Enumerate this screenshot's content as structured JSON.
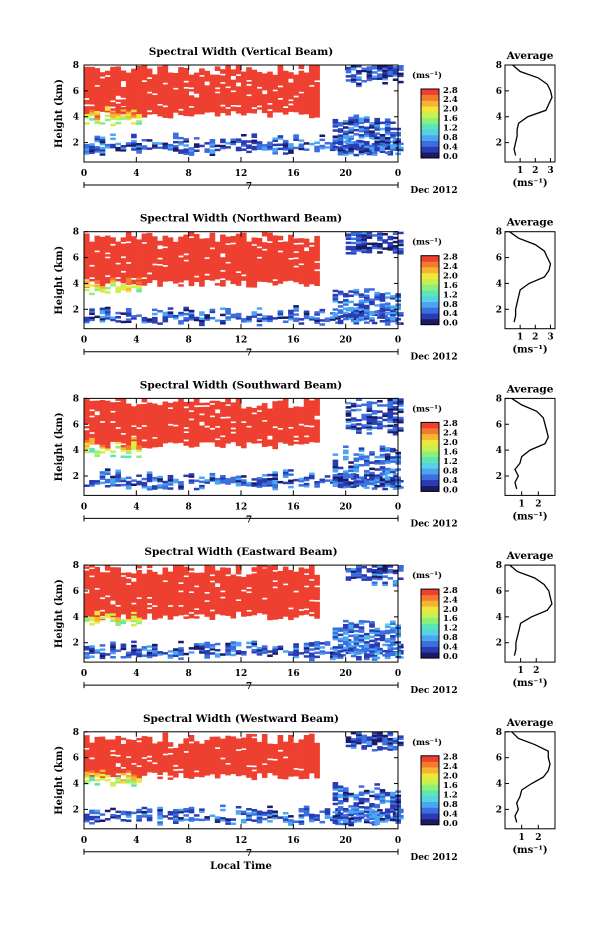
{
  "figure": {
    "xlabel": "Local Time",
    "date_label": "Dec 2012",
    "day_label": "7",
    "colorbar_unit": "(ms⁻¹)",
    "colorbar_ticks": [
      "0.0",
      "0.4",
      "0.8",
      "1.2",
      "1.6",
      "2.0",
      "2.4",
      "2.8"
    ],
    "colorbar_colors": [
      "#1a1a66",
      "#2a3cb4",
      "#3c6ede",
      "#4ba6f0",
      "#56d2e6",
      "#5ce6b4",
      "#8cf07a",
      "#c8f050",
      "#f0e63c",
      "#f6b432",
      "#f47a2c",
      "#ee4030"
    ],
    "profile_title": "Average",
    "profile_xlabel": "(ms⁻¹)"
  },
  "chart_data": [
    {
      "type": "heatmap",
      "title": "Spectral Width (Vertical Beam)",
      "ylabel": "Height (km)",
      "xlim": [
        0,
        24
      ],
      "ylim": [
        0.5,
        8
      ],
      "x_ticks": [
        "0",
        "4",
        "8",
        "12",
        "16",
        "20",
        "0"
      ],
      "y_ticks": [
        "2",
        "4",
        "6",
        "8"
      ],
      "colorbar_label": "(ms⁻¹)",
      "colorbar_range": [
        0.0,
        2.8
      ],
      "regions": [
        {
          "t": [
            0,
            18
          ],
          "h": [
            4.2,
            7.6
          ],
          "value": 2.8,
          "note": "upper red layer"
        },
        {
          "t": [
            0,
            4
          ],
          "h": [
            3.5,
            4.3
          ],
          "value": 1.6
        },
        {
          "t": [
            0,
            24
          ],
          "h": [
            1.3,
            2.2
          ],
          "value": 0.5
        },
        {
          "t": [
            19,
            24
          ],
          "h": [
            1.2,
            3.8
          ],
          "value": 0.5
        },
        {
          "t": [
            20,
            24
          ],
          "h": [
            6.6,
            8.0
          ],
          "value": 0.4
        }
      ],
      "profile": {
        "title": "Average",
        "xlabel": "(ms⁻¹)",
        "x_ticks": [
          "1",
          "2",
          "3"
        ],
        "xlim": [
          0,
          3.3
        ],
        "y_ticks": [
          "2",
          "4",
          "6",
          "8"
        ],
        "ylim": [
          0.5,
          8
        ],
        "heights": [
          1.0,
          1.5,
          2.0,
          2.5,
          3.0,
          3.5,
          4.0,
          4.5,
          5.0,
          5.5,
          6.0,
          6.5,
          7.0,
          7.5,
          8.0
        ],
        "values": [
          0.7,
          0.6,
          0.7,
          0.8,
          0.8,
          0.9,
          1.5,
          2.7,
          2.9,
          3.1,
          3.0,
          2.8,
          2.2,
          1.0,
          0.5
        ]
      }
    },
    {
      "type": "heatmap",
      "title": "Spectral Width (Northward Beam)",
      "ylabel": "Height (km)",
      "xlim": [
        0,
        24
      ],
      "ylim": [
        0.5,
        8
      ],
      "x_ticks": [
        "0",
        "4",
        "8",
        "12",
        "16",
        "20",
        "0"
      ],
      "y_ticks": [
        "2",
        "4",
        "6",
        "8"
      ],
      "colorbar_label": "(ms⁻¹)",
      "colorbar_range": [
        0.0,
        2.8
      ],
      "regions": [
        {
          "t": [
            0,
            18
          ],
          "h": [
            4.0,
            7.5
          ],
          "value": 2.8
        },
        {
          "t": [
            0,
            4
          ],
          "h": [
            3.4,
            4.1
          ],
          "value": 1.6
        },
        {
          "t": [
            0,
            24
          ],
          "h": [
            1.0,
            1.8
          ],
          "value": 0.5
        },
        {
          "t": [
            19,
            24
          ],
          "h": [
            1.0,
            3.5
          ],
          "value": 0.6
        },
        {
          "t": [
            20,
            24
          ],
          "h": [
            6.4,
            8.0
          ],
          "value": 0.4
        }
      ],
      "profile": {
        "title": "Average",
        "xlabel": "(ms⁻¹)",
        "x_ticks": [
          "1",
          "2",
          "3"
        ],
        "xlim": [
          0,
          3.3
        ],
        "y_ticks": [
          "2",
          "4",
          "6",
          "8"
        ],
        "ylim": [
          0.5,
          8
        ],
        "heights": [
          1.0,
          1.5,
          2.0,
          2.5,
          3.0,
          3.5,
          4.0,
          4.5,
          5.0,
          5.5,
          6.0,
          6.5,
          7.0,
          7.5,
          8.0
        ],
        "values": [
          0.6,
          0.7,
          0.7,
          0.8,
          0.9,
          1.0,
          1.6,
          2.6,
          2.9,
          3.0,
          2.8,
          2.6,
          2.0,
          0.9,
          0.3
        ]
      }
    },
    {
      "type": "heatmap",
      "title": "Spectral Width (Southward Beam)",
      "ylabel": "Height (km)",
      "xlim": [
        0,
        24
      ],
      "ylim": [
        0.5,
        8
      ],
      "x_ticks": [
        "0",
        "4",
        "8",
        "12",
        "16",
        "20",
        "0"
      ],
      "y_ticks": [
        "2",
        "4",
        "6",
        "8"
      ],
      "colorbar_label": "(ms⁻¹)",
      "colorbar_range": [
        0.0,
        2.8
      ],
      "regions": [
        {
          "t": [
            0,
            18
          ],
          "h": [
            4.4,
            7.6
          ],
          "value": 2.8
        },
        {
          "t": [
            0,
            4
          ],
          "h": [
            3.7,
            4.5
          ],
          "value": 1.6
        },
        {
          "t": [
            0,
            24
          ],
          "h": [
            1.2,
            2.0
          ],
          "value": 0.5
        },
        {
          "t": [
            19,
            24
          ],
          "h": [
            1.1,
            3.8
          ],
          "value": 0.5
        },
        {
          "t": [
            20,
            24
          ],
          "h": [
            5.4,
            8.0
          ],
          "value": 0.4
        }
      ],
      "profile": {
        "title": "Average",
        "xlabel": "(ms⁻¹)",
        "x_ticks": [
          "1",
          "2"
        ],
        "xlim": [
          0,
          3.0
        ],
        "y_ticks": [
          "2",
          "4",
          "6",
          "8"
        ],
        "ylim": [
          0.5,
          8
        ],
        "heights": [
          1.0,
          1.5,
          2.0,
          2.5,
          3.0,
          3.5,
          4.0,
          4.5,
          5.0,
          5.5,
          6.0,
          6.5,
          7.0,
          7.5,
          8.0
        ],
        "values": [
          0.7,
          0.6,
          0.8,
          0.6,
          0.9,
          1.0,
          1.5,
          2.4,
          2.6,
          2.5,
          2.4,
          2.3,
          1.9,
          1.0,
          0.4
        ]
      }
    },
    {
      "type": "heatmap",
      "title": "Spectral Width (Eastward Beam)",
      "ylabel": "Height (km)",
      "xlim": [
        0,
        24
      ],
      "ylim": [
        0.5,
        8
      ],
      "x_ticks": [
        "0",
        "4",
        "8",
        "12",
        "16",
        "20",
        "0"
      ],
      "y_ticks": [
        "2",
        "4",
        "6",
        "8"
      ],
      "colorbar_label": "(ms⁻¹)",
      "colorbar_range": [
        0.0,
        2.8
      ],
      "regions": [
        {
          "t": [
            0,
            18
          ],
          "h": [
            4.0,
            7.6
          ],
          "value": 2.8
        },
        {
          "t": [
            0,
            4
          ],
          "h": [
            3.4,
            4.1
          ],
          "value": 1.6
        },
        {
          "t": [
            0,
            24
          ],
          "h": [
            0.9,
            1.7
          ],
          "value": 0.5
        },
        {
          "t": [
            19,
            24
          ],
          "h": [
            0.9,
            3.4
          ],
          "value": 0.6
        },
        {
          "t": [
            20,
            24
          ],
          "h": [
            6.6,
            8.0
          ],
          "value": 0.4
        }
      ],
      "profile": {
        "title": "Average",
        "xlabel": "(ms⁻¹)",
        "x_ticks": [
          "1",
          "2"
        ],
        "xlim": [
          0,
          3.2
        ],
        "y_ticks": [
          "2",
          "4",
          "6",
          "8"
        ],
        "ylim": [
          0.5,
          8
        ],
        "heights": [
          1.0,
          1.5,
          2.0,
          2.5,
          3.0,
          3.5,
          4.0,
          4.5,
          5.0,
          5.5,
          6.0,
          6.5,
          7.0,
          7.5,
          8.0
        ],
        "values": [
          0.6,
          0.7,
          0.7,
          0.8,
          0.9,
          1.0,
          1.7,
          2.7,
          3.0,
          2.9,
          2.8,
          2.5,
          1.9,
          0.8,
          0.3
        ]
      }
    },
    {
      "type": "heatmap",
      "title": "Spectral Width (Westward Beam)",
      "ylabel": "Height (km)",
      "xlim": [
        0,
        24
      ],
      "ylim": [
        0.5,
        8
      ],
      "x_ticks": [
        "0",
        "4",
        "8",
        "12",
        "16",
        "20",
        "0"
      ],
      "y_ticks": [
        "2",
        "4",
        "6",
        "8"
      ],
      "colorbar_label": "(ms⁻¹)",
      "colorbar_range": [
        0.0,
        2.8
      ],
      "regions": [
        {
          "t": [
            0,
            18
          ],
          "h": [
            4.6,
            7.4
          ],
          "value": 2.8
        },
        {
          "t": [
            0,
            4
          ],
          "h": [
            4.0,
            4.7
          ],
          "value": 1.6
        },
        {
          "t": [
            0,
            24
          ],
          "h": [
            1.0,
            1.8
          ],
          "value": 0.5
        },
        {
          "t": [
            19,
            24
          ],
          "h": [
            0.9,
            3.6
          ],
          "value": 0.5
        },
        {
          "t": [
            20,
            24
          ],
          "h": [
            6.6,
            8.0
          ],
          "value": 0.4
        }
      ],
      "profile": {
        "title": "Average",
        "xlabel": "(ms⁻¹)",
        "x_ticks": [
          "1",
          "2"
        ],
        "xlim": [
          0,
          3.0
        ],
        "y_ticks": [
          "2",
          "4",
          "6",
          "8"
        ],
        "ylim": [
          0.5,
          8
        ],
        "heights": [
          1.0,
          1.5,
          2.0,
          2.5,
          3.0,
          3.5,
          4.0,
          4.5,
          5.0,
          5.5,
          6.0,
          6.5,
          7.0,
          7.5,
          8.0
        ],
        "values": [
          0.7,
          0.6,
          0.8,
          0.7,
          0.9,
          1.0,
          1.6,
          2.3,
          2.6,
          2.7,
          2.6,
          2.6,
          1.8,
          0.8,
          0.4
        ]
      }
    }
  ]
}
